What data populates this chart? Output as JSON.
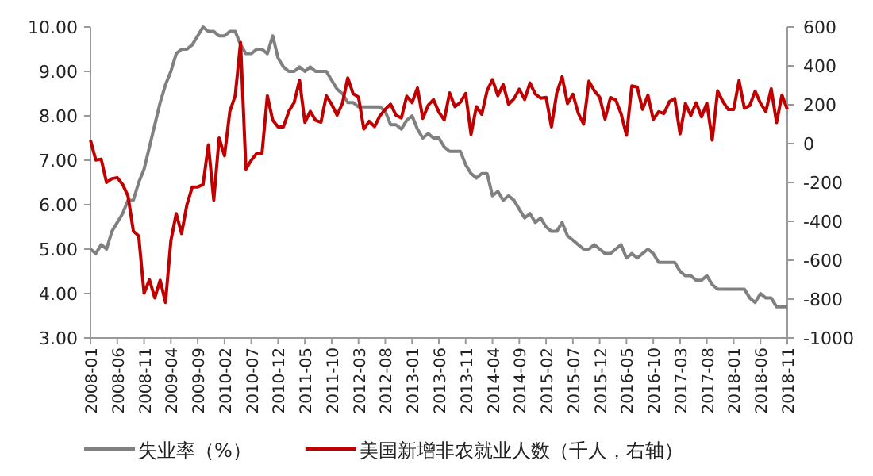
{
  "chart_data": {
    "type": "line",
    "legend": "bottom",
    "categories": [
      "2008-01",
      null,
      null,
      null,
      null,
      "2008-06",
      null,
      null,
      null,
      null,
      "2008-11",
      null,
      null,
      null,
      null,
      "2009-04",
      null,
      null,
      null,
      null,
      "2009-09",
      null,
      null,
      null,
      null,
      "2010-02",
      null,
      null,
      null,
      null,
      "2010-07",
      null,
      null,
      null,
      null,
      "2010-12",
      null,
      null,
      null,
      null,
      "2011-05",
      null,
      null,
      null,
      null,
      "2011-10",
      null,
      null,
      null,
      null,
      "2012-03",
      null,
      null,
      null,
      null,
      "2012-08",
      null,
      null,
      null,
      null,
      "2013-01",
      null,
      null,
      null,
      null,
      "2013-06",
      null,
      null,
      null,
      null,
      "2013-11",
      null,
      null,
      null,
      null,
      "2014-04",
      null,
      null,
      null,
      null,
      "2014-09",
      null,
      null,
      null,
      null,
      "2015-02",
      null,
      null,
      null,
      null,
      "2015-07",
      null,
      null,
      null,
      null,
      "2015-12",
      null,
      null,
      null,
      null,
      "2016-05",
      null,
      null,
      null,
      null,
      "2016-10",
      null,
      null,
      null,
      null,
      "2017-03",
      null,
      null,
      null,
      null,
      "2017-08",
      null,
      null,
      null,
      null,
      "2018-01",
      null,
      null,
      null,
      null,
      "2018-06",
      null,
      null,
      null,
      null,
      "2018-11"
    ],
    "ylim": [
      3,
      10
    ],
    "yticks": [
      {
        "value": 3,
        "label": "3.00"
      },
      {
        "value": 4,
        "label": "4.00"
      },
      {
        "value": 5,
        "label": "5.00"
      },
      {
        "value": 6,
        "label": "6.00"
      },
      {
        "value": 7,
        "label": "7.00"
      },
      {
        "value": 8,
        "label": "8.00"
      },
      {
        "value": 9,
        "label": "9.00"
      },
      {
        "value": 10,
        "label": "10.00"
      }
    ],
    "y2lim": [
      -1000,
      600
    ],
    "y2ticks": [
      -1000,
      -800,
      -600,
      -400,
      -200,
      0,
      200,
      400,
      600
    ],
    "series": [
      {
        "name": "失业率（%）",
        "color": "#808080",
        "values": [
          5.0,
          4.9,
          5.1,
          5.0,
          5.4,
          5.6,
          5.8,
          6.1,
          6.1,
          6.5,
          6.8,
          7.3,
          7.8,
          8.3,
          8.7,
          9.0,
          9.4,
          9.5,
          9.5,
          9.6,
          9.8,
          10.0,
          9.9,
          9.9,
          9.8,
          9.8,
          9.9,
          9.9,
          9.6,
          9.4,
          9.4,
          9.5,
          9.5,
          9.4,
          9.8,
          9.3,
          9.1,
          9.0,
          9.0,
          9.1,
          9.0,
          9.1,
          9.0,
          9.0,
          9.0,
          8.8,
          8.6,
          8.5,
          8.3,
          8.3,
          8.2,
          8.2,
          8.2,
          8.2,
          8.2,
          8.1,
          7.8,
          7.8,
          7.7,
          7.9,
          8.0,
          7.7,
          7.5,
          7.6,
          7.5,
          7.5,
          7.3,
          7.2,
          7.2,
          7.2,
          6.9,
          6.7,
          6.6,
          6.7,
          6.7,
          6.2,
          6.3,
          6.1,
          6.2,
          6.1,
          5.9,
          5.7,
          5.8,
          5.6,
          5.7,
          5.5,
          5.4,
          5.4,
          5.6,
          5.3,
          5.2,
          5.1,
          5.0,
          5.0,
          5.1,
          5.0,
          4.9,
          4.9,
          5.0,
          5.1,
          4.8,
          4.9,
          4.8,
          4.9,
          5.0,
          4.9,
          4.7,
          4.7,
          4.7,
          4.7,
          4.5,
          4.4,
          4.4,
          4.3,
          4.3,
          4.4,
          4.2,
          4.1,
          4.1,
          4.1,
          4.1,
          4.1,
          4.1,
          3.9,
          3.8,
          4.0,
          3.9,
          3.9,
          3.7,
          3.7,
          3.7
        ]
      },
      {
        "name": "美国新增非农就业人数（千人，右轴）",
        "color": "#c00000",
        "axis": "y2",
        "values": [
          17,
          -85,
          -80,
          -200,
          -180,
          -175,
          -210,
          -270,
          -450,
          -475,
          -770,
          -700,
          -794,
          -703,
          -817,
          -500,
          -360,
          -463,
          -314,
          -223,
          -223,
          -211,
          -6,
          -291,
          29,
          -63,
          166,
          246,
          520,
          -131,
          -86,
          -51,
          -51,
          246,
          120,
          86,
          86,
          166,
          211,
          326,
          109,
          166,
          120,
          110,
          246,
          202,
          146,
          207,
          338,
          257,
          239,
          75,
          115,
          87,
          143,
          177,
          203,
          146,
          132,
          244,
          211,
          286,
          130,
          197,
          226,
          162,
          122,
          261,
          190,
          212,
          258,
          47,
          190,
          151,
          272,
          329,
          246,
          304,
          202,
          230,
          280,
          227,
          312,
          255,
          234,
          238,
          86,
          262,
          344,
          206,
          254,
          157,
          100,
          321,
          272,
          239,
          126,
          237,
          225,
          153,
          43,
          297,
          291,
          176,
          249,
          124,
          164,
          155,
          216,
          232,
          50,
          207,
          145,
          210,
          138,
          208,
          18,
          271,
          216,
          175,
          176,
          324,
          182,
          196,
          270,
          208,
          165,
          282,
          108,
          250,
          176
        ]
      }
    ]
  }
}
